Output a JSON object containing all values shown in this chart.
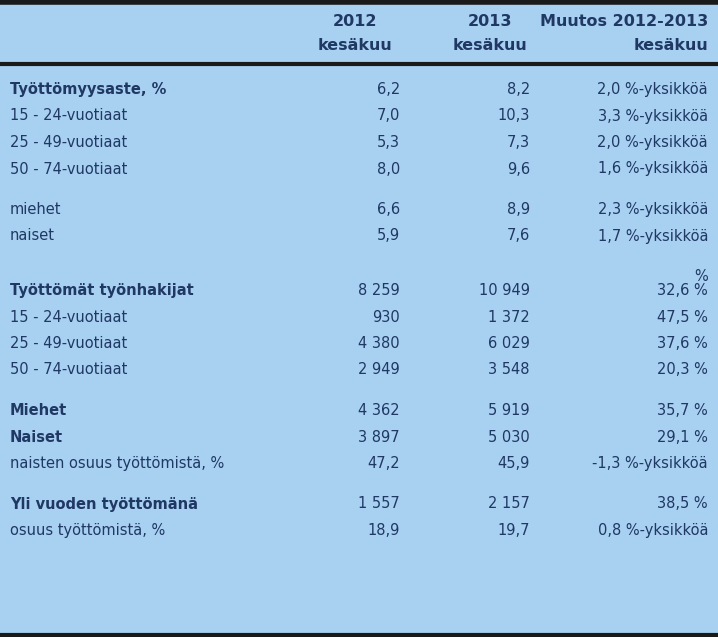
{
  "rows": [
    {
      "label": "Työttömyysaste, %",
      "v2012": "6,2",
      "v2013": "8,2",
      "muutos": "2,0 %-yksikköä",
      "bold": true,
      "type": "normal"
    },
    {
      "label": "15 - 24-vuotiaat",
      "v2012": "7,0",
      "v2013": "10,3",
      "muutos": "3,3 %-yksikköä",
      "bold": false,
      "type": "normal"
    },
    {
      "label": "25 - 49-vuotiaat",
      "v2012": "5,3",
      "v2013": "7,3",
      "muutos": "2,0 %-yksikköä",
      "bold": false,
      "type": "normal"
    },
    {
      "label": "50 - 74-vuotiaat",
      "v2012": "8,0",
      "v2013": "9,6",
      "muutos": "1,6 %-yksikköä",
      "bold": false,
      "type": "normal"
    },
    {
      "label": "",
      "v2012": "",
      "v2013": "",
      "muutos": "",
      "bold": false,
      "type": "spacer"
    },
    {
      "label": "miehet",
      "v2012": "6,6",
      "v2013": "8,9",
      "muutos": "2,3 %-yksikköä",
      "bold": false,
      "type": "normal"
    },
    {
      "label": "naiset",
      "v2012": "5,9",
      "v2013": "7,6",
      "muutos": "1,7 %-yksikköä",
      "bold": false,
      "type": "normal"
    },
    {
      "label": "",
      "v2012": "",
      "v2013": "",
      "muutos": "",
      "bold": false,
      "type": "spacer"
    },
    {
      "label": "",
      "v2012": "",
      "v2013": "",
      "muutos": "%",
      "bold": false,
      "type": "pct_header"
    },
    {
      "label": "Työttömät työnhakijat",
      "v2012": "8 259",
      "v2013": "10 949",
      "muutos": "32,6 %",
      "bold": true,
      "type": "normal"
    },
    {
      "label": "15 - 24-vuotiaat",
      "v2012": "930",
      "v2013": "1 372",
      "muutos": "47,5 %",
      "bold": false,
      "type": "normal"
    },
    {
      "label": "25 - 49-vuotiaat",
      "v2012": "4 380",
      "v2013": "6 029",
      "muutos": "37,6 %",
      "bold": false,
      "type": "normal"
    },
    {
      "label": "50 - 74-vuotiaat",
      "v2012": "2 949",
      "v2013": "3 548",
      "muutos": "20,3 %",
      "bold": false,
      "type": "normal"
    },
    {
      "label": "",
      "v2012": "",
      "v2013": "",
      "muutos": "",
      "bold": false,
      "type": "spacer"
    },
    {
      "label": "Miehet",
      "v2012": "4 362",
      "v2013": "5 919",
      "muutos": "35,7 %",
      "bold": true,
      "type": "normal"
    },
    {
      "label": "Naiset",
      "v2012": "3 897",
      "v2013": "5 030",
      "muutos": "29,1 %",
      "bold": true,
      "type": "normal"
    },
    {
      "label": "naisten osuus työttömistä, %",
      "v2012": "47,2",
      "v2013": "45,9",
      "muutos": "-1,3 %-yksikköä",
      "bold": false,
      "type": "normal"
    },
    {
      "label": "",
      "v2012": "",
      "v2013": "",
      "muutos": "",
      "bold": false,
      "type": "spacer"
    },
    {
      "label": "Yli vuoden työttömänä",
      "v2012": "1 557",
      "v2013": "2 157",
      "muutos": "38,5 %",
      "bold": true,
      "type": "normal"
    },
    {
      "label": "osuus työttömistä, %",
      "v2012": "18,9",
      "v2013": "19,7",
      "muutos": "0,8 %-yksikköä",
      "bold": false,
      "type": "normal"
    }
  ],
  "bg_color": "#a8d0f0",
  "text_color": "#1f3864",
  "border_color": "#1a1a1a",
  "fig_width": 7.18,
  "fig_height": 6.37,
  "dpi": 100,
  "header1_year2012": "2012",
  "header1_year2013": "2013",
  "header1_muutos": "Muutos 2012-2013",
  "header2_kesakuu": "kesäkuu"
}
